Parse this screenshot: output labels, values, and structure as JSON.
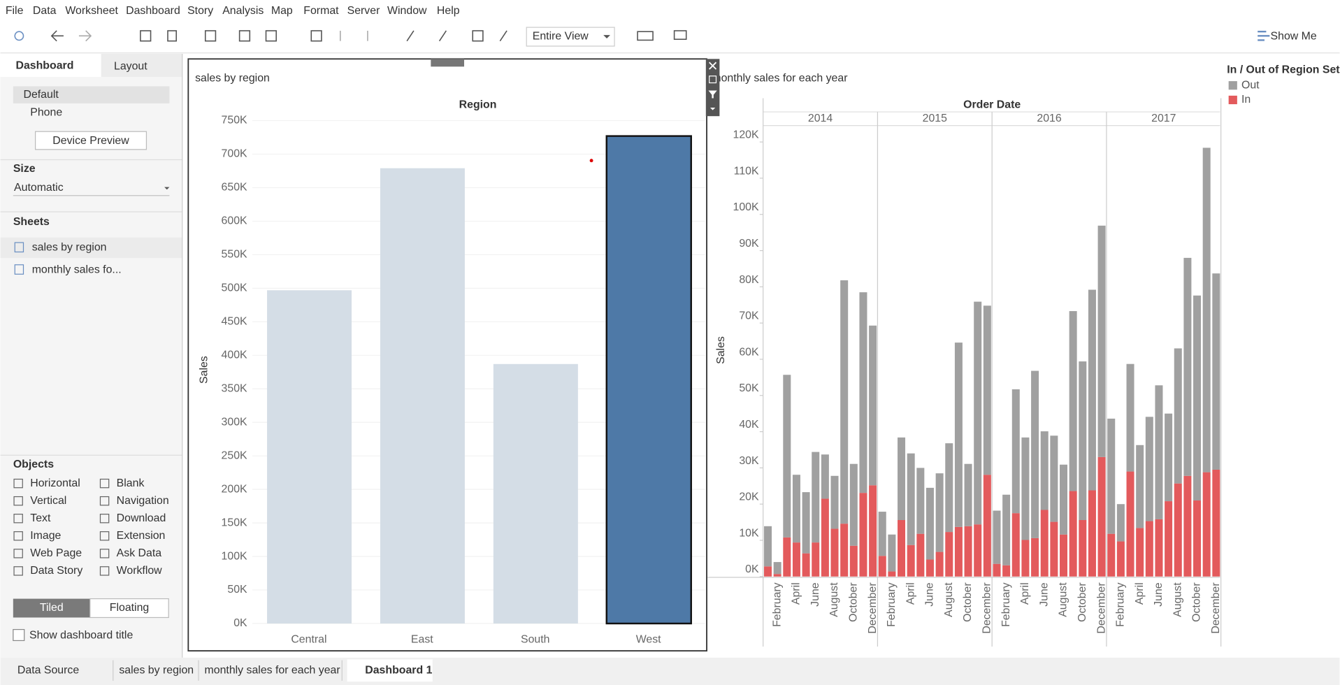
{
  "menu": [
    "File",
    "Data",
    "Worksheet",
    "Dashboard",
    "Story",
    "Analysis",
    "Map",
    "Format",
    "Server",
    "Window",
    "Help"
  ],
  "toolbar": {
    "view": "Entire View",
    "show_me": "Show Me"
  },
  "left_panel": {
    "tabs": [
      "Dashboard",
      "Layout"
    ],
    "devices": [
      "Default",
      "Phone"
    ],
    "device_preview": "Device Preview",
    "size_title": "Size",
    "size_value": "Automatic",
    "sheets_title": "Sheets",
    "sheets": [
      "sales by region",
      "monthly sales fo..."
    ],
    "objects_title": "Objects",
    "objects": [
      "Horizontal",
      "Vertical",
      "Text",
      "Image",
      "Web Page",
      "Data Story",
      "Blank",
      "Navigation",
      "Download",
      "Extension",
      "Ask Data",
      "Workflow"
    ],
    "layout_modes": [
      "Tiled",
      "Floating"
    ],
    "show_title": "Show dashboard title"
  },
  "bottom_tabs": [
    "Data Source",
    "sales by region",
    "monthly sales for each year",
    "Dashboard 1"
  ],
  "chart_data": [
    {
      "type": "bar",
      "title": "sales by region",
      "x_header": "Region",
      "y_label": "Sales",
      "categories": [
        "Central",
        "East",
        "South",
        "West"
      ],
      "values": [
        497000,
        679000,
        387000,
        727000
      ],
      "colors": [
        "#d4dde6",
        "#d4dde6",
        "#d4dde6",
        "#4e79a7"
      ],
      "selected": "West",
      "ylim": [
        -10200,
        754100
      ],
      "yticks": [
        {
          "value": 0,
          "label": "0K"
        },
        {
          "value": 50000,
          "label": "50K"
        },
        {
          "value": 100000,
          "label": "100K"
        },
        {
          "value": 150000,
          "label": "150K"
        },
        {
          "value": 200000,
          "label": "200K"
        },
        {
          "value": 250000,
          "label": "250K"
        },
        {
          "value": 300000,
          "label": "300K"
        },
        {
          "value": 350000,
          "label": "350K"
        },
        {
          "value": 400000,
          "label": "400K"
        },
        {
          "value": 450000,
          "label": "450K"
        },
        {
          "value": 500000,
          "label": "500K"
        },
        {
          "value": 550000,
          "label": "550K"
        },
        {
          "value": 600000,
          "label": "600K"
        },
        {
          "value": 650000,
          "label": "650K"
        },
        {
          "value": 700000,
          "label": "700K"
        },
        {
          "value": 750000,
          "label": "750K"
        }
      ],
      "grid": true
    },
    {
      "type": "stacked-bar",
      "title": "monthly sales for each year",
      "x_header": "Order Date",
      "y_label": "Sales",
      "years": [
        "2014",
        "2015",
        "2016",
        "2017"
      ],
      "categories": [
        null,
        "February",
        null,
        "April",
        null,
        "June",
        null,
        "August",
        null,
        "October",
        null,
        "December",
        null,
        "February",
        null,
        "April",
        null,
        "June",
        null,
        "August",
        null,
        "October",
        null,
        "December",
        null,
        "February",
        null,
        "April",
        null,
        "June",
        null,
        "August",
        null,
        "October",
        null,
        "December",
        null,
        "February",
        null,
        "April",
        null,
        "June",
        null,
        "August",
        null,
        "October",
        null,
        "December"
      ],
      "legend_title": "In / Out of Region Set",
      "legend": "right",
      "series": [
        {
          "name": "Out",
          "color": "#a0a0a0",
          "values": [
            11100,
            3300,
            44900,
            18700,
            16900,
            25000,
            12200,
            14600,
            67200,
            22600,
            55400,
            44100,
            12200,
            10200,
            22800,
            25300,
            18200,
            19800,
            21700,
            24500,
            50900,
            17200,
            61500,
            46700,
            14700,
            19500,
            34200,
            28300,
            46200,
            21700,
            23800,
            19300,
            49700,
            43800,
            55400,
            63900,
            31800,
            10300,
            29700,
            22900,
            28800,
            37000,
            24200,
            37300,
            60200,
            56600,
            89600,
            54200
          ]
        },
        {
          "name": "In",
          "color": "#e35a5c",
          "values": [
            2800,
            700,
            10800,
            9400,
            6400,
            9400,
            21500,
            13200,
            14600,
            8500,
            23100,
            25200,
            5700,
            1400,
            15600,
            8700,
            11800,
            4700,
            6800,
            12300,
            13700,
            13900,
            14400,
            28100,
            3500,
            3100,
            17500,
            10100,
            10600,
            18400,
            15100,
            11600,
            23600,
            15600,
            23800,
            33000,
            11800,
            9700,
            29000,
            13400,
            15300,
            15800,
            20800,
            25700,
            27800,
            21000,
            28800,
            29500
          ]
        }
      ],
      "ylim": [
        0,
        124300
      ],
      "yticks": [
        {
          "value": 0,
          "label": "0K"
        },
        {
          "value": 10000,
          "label": "10K"
        },
        {
          "value": 20000,
          "label": "20K"
        },
        {
          "value": 30000,
          "label": "30K"
        },
        {
          "value": 40000,
          "label": "40K"
        },
        {
          "value": 50000,
          "label": "50K"
        },
        {
          "value": 60000,
          "label": "60K"
        },
        {
          "value": 70000,
          "label": "70K"
        },
        {
          "value": 80000,
          "label": "80K"
        },
        {
          "value": 90000,
          "label": "90K"
        },
        {
          "value": 100000,
          "label": "100K"
        },
        {
          "value": 110000,
          "label": "110K"
        },
        {
          "value": 120000,
          "label": "120K"
        }
      ],
      "grid": false
    }
  ]
}
